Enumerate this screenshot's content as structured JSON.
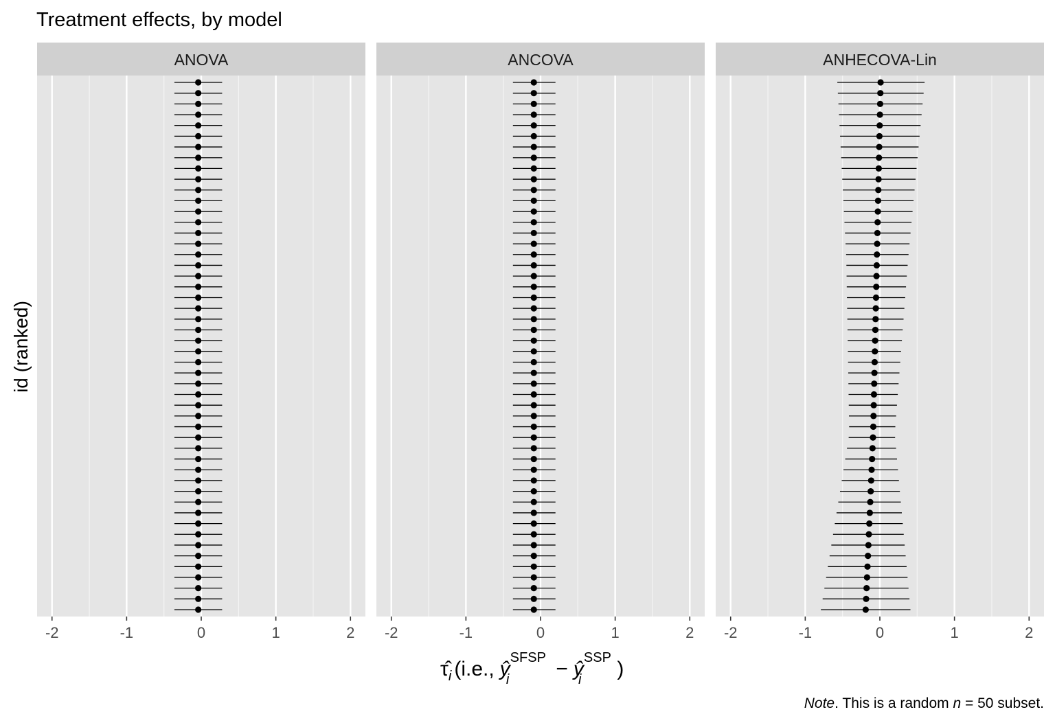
{
  "chart_data": {
    "type": "forest",
    "title": "Treatment effects, by model",
    "ylabel": "id (ranked)",
    "xlabel": {
      "tau": "τ̂",
      "sub_i": "i",
      "paren_open": "(",
      "ie": "i.e.,",
      "y": "ŷ",
      "sup_sfsp": "SFSP",
      "minus": "−",
      "sup_ssp": "SSP",
      "paren_close": ")"
    },
    "caption": {
      "note": "Note",
      "text1": ". This is a random ",
      "n": "n",
      "text2": " = 50 subset."
    },
    "xlim": [
      -2.2,
      2.2
    ],
    "x_ticks": [
      -2,
      -1,
      0,
      1,
      2
    ],
    "x_tick_labels": [
      "-2",
      "-1",
      "0",
      "1",
      "2"
    ],
    "n_points": 50,
    "grid": true,
    "panel_background": "#e5e5e5",
    "strip_background": "#d0d0d0",
    "point_color": "#000000",
    "panels": [
      {
        "name": "ANOVA",
        "estimate": [
          -0.04,
          -0.04
        ],
        "lower": [
          -0.36,
          -0.36
        ],
        "upper": [
          0.28,
          0.28
        ]
      },
      {
        "name": "ANCOVA",
        "estimate": [
          -0.09,
          -0.09
        ],
        "lower": [
          -0.37,
          -0.37
        ],
        "upper": [
          0.2,
          0.2
        ]
      },
      {
        "name": "ANHECOVA-Lin",
        "estimate": [
          0.01,
          -0.04,
          -0.09,
          -0.19
        ],
        "lower": [
          -0.57,
          -0.45,
          -0.41,
          -0.79
        ],
        "upper": [
          0.6,
          0.38,
          0.2,
          0.41
        ]
      }
    ]
  }
}
